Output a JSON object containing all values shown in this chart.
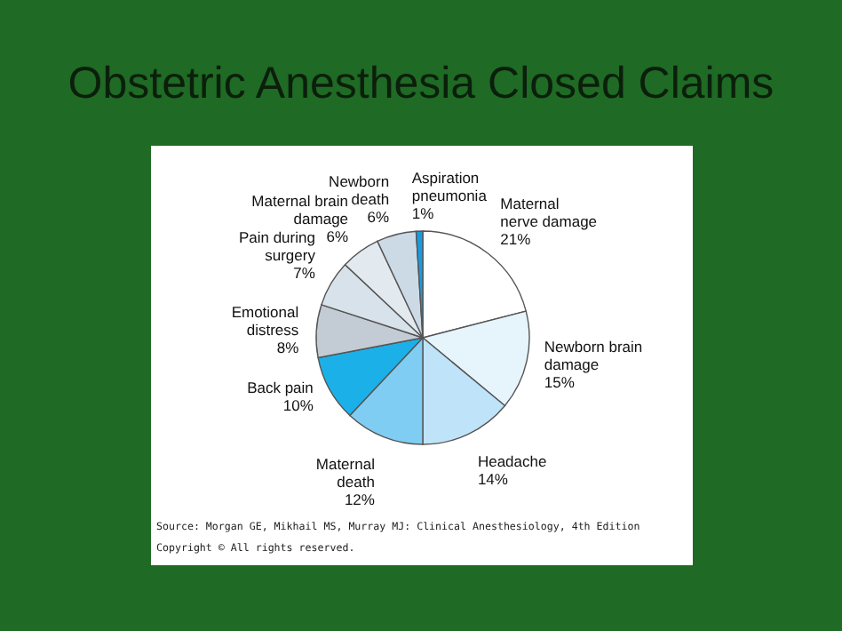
{
  "chart_data": {
    "type": "pie",
    "title": "Obstetric Anesthesia Closed Claims",
    "categories": [
      "Maternal nerve damage",
      "Newborn brain damage",
      "Headache",
      "Maternal death",
      "Back pain",
      "Emotional distress",
      "Pain during surgery",
      "Maternal brain damage",
      "Newborn death",
      "Aspiration pneumonia"
    ],
    "values": [
      21,
      15,
      14,
      12,
      10,
      8,
      7,
      6,
      6,
      1
    ],
    "value_labels": [
      "21%",
      "15%",
      "14%",
      "12%",
      "10%",
      "8%",
      "7%",
      "6%",
      "6%",
      "1%"
    ],
    "colors": [
      "#ffffff",
      "#e6f4fc",
      "#bfe3f8",
      "#7fcdf2",
      "#1cb0e8",
      "#c3ccd4",
      "#d8e2ea",
      "#e2e9ef",
      "#ccdae6",
      "#1a9be0"
    ],
    "annotations": [
      "Source: Morgan GE, Mikhail MS, Murray MJ: Clinical Anesthesiology, 4th Edition",
      "Copyright © All rights reserved."
    ]
  }
}
